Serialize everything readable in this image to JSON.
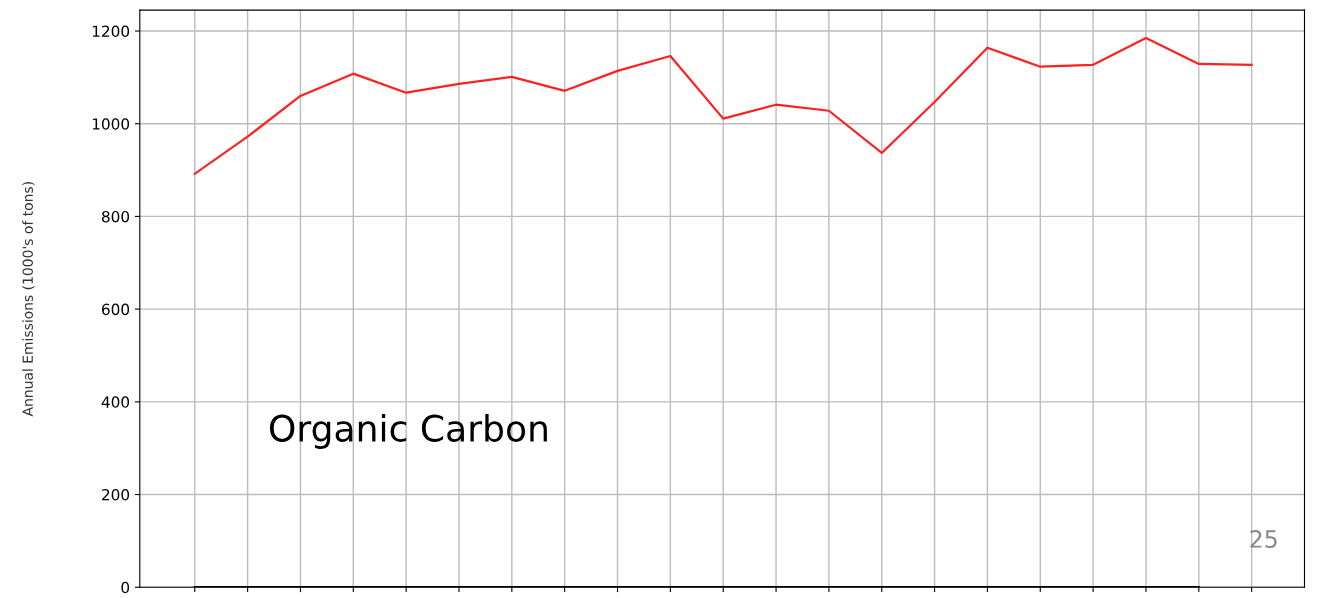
{
  "chart_data": {
    "type": "line",
    "ylabel": "Annual Emissions (1000's of tons)",
    "categories": [
      null,
      null,
      null,
      null,
      null,
      null,
      null,
      null,
      null,
      null,
      null,
      null,
      null,
      null,
      null,
      null,
      null,
      null,
      null,
      null,
      null
    ],
    "series": [
      {
        "color": "#ff2020",
        "values": [
          892,
          972,
          1060,
          1108,
          1067,
          1086,
          1101,
          1071,
          1114,
          1146,
          1011,
          1041,
          1028,
          937,
          1047,
          1164,
          1123,
          1127,
          1185,
          1129,
          1127
        ]
      },
      {
        "color": "#000000",
        "values": [
          0,
          0,
          0,
          0,
          0,
          0,
          0,
          0,
          0,
          0,
          0,
          0,
          0,
          0,
          0,
          0,
          0,
          0,
          0,
          0,
          null
        ]
      }
    ],
    "ylim": [
      0,
      1245
    ],
    "yticks": [
      0,
      200,
      400,
      600,
      800,
      1000,
      1200
    ],
    "grid": true,
    "annotations": [
      "Organic Carbon",
      "25"
    ]
  }
}
